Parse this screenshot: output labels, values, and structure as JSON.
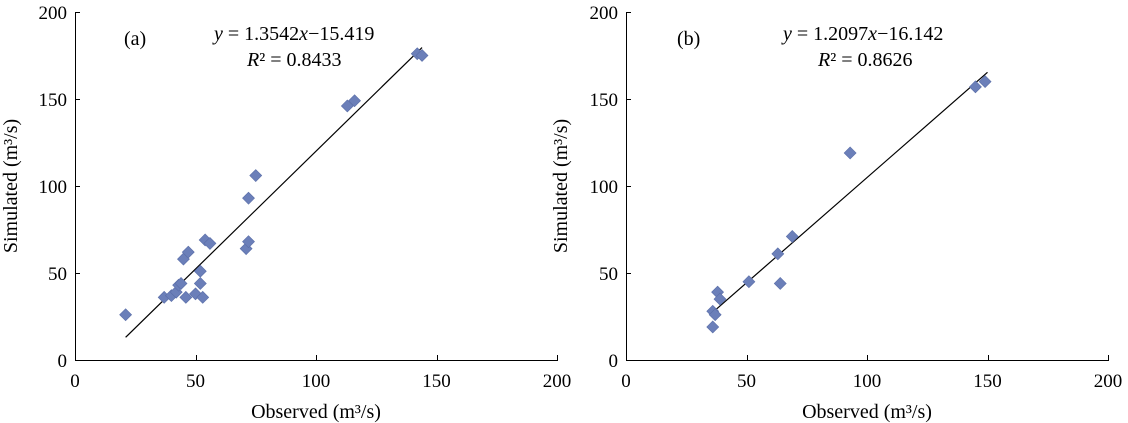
{
  "chart_data": [
    {
      "type": "scatter",
      "panel_label": "(a)",
      "xlabel": "Observed (m³/s)",
      "ylabel": "Simulated (m³/s)",
      "xlim": [
        0,
        200
      ],
      "ylim": [
        0,
        200
      ],
      "xticks": [
        0,
        50,
        100,
        150,
        200
      ],
      "yticks": [
        0,
        50,
        100,
        150,
        200
      ],
      "equation_y": "y",
      "equation_rest": " = 1.3542",
      "equation_x": "x",
      "equation_tail": "−15.419",
      "r2_R": "R",
      "r2_rest": "² = 0.8433",
      "fit": {
        "slope": 1.3542,
        "intercept": -15.419,
        "x_range": [
          21,
          144
        ]
      },
      "points": [
        [
          21,
          26
        ],
        [
          37,
          36
        ],
        [
          40,
          37
        ],
        [
          42,
          39
        ],
        [
          43,
          43
        ],
        [
          44,
          44
        ],
        [
          45,
          58
        ],
        [
          46,
          36
        ],
        [
          47,
          62
        ],
        [
          50,
          38
        ],
        [
          52,
          51
        ],
        [
          52,
          44
        ],
        [
          53,
          36
        ],
        [
          54,
          69
        ],
        [
          56,
          67
        ],
        [
          71,
          64
        ],
        [
          72,
          68
        ],
        [
          72,
          93
        ],
        [
          75,
          106
        ],
        [
          113,
          146
        ],
        [
          116,
          149
        ],
        [
          142,
          176
        ],
        [
          144,
          175
        ]
      ]
    },
    {
      "type": "scatter",
      "panel_label": "(b)",
      "xlabel": "Observed (m³/s)",
      "ylabel": "Simulated (m³/s)",
      "xlim": [
        0,
        200
      ],
      "ylim": [
        0,
        200
      ],
      "xticks": [
        0,
        50,
        100,
        150,
        200
      ],
      "yticks": [
        0,
        50,
        100,
        150,
        200
      ],
      "equation_y": "y",
      "equation_rest": " = 1.2097",
      "equation_x": "x",
      "equation_tail": "−16.142",
      "r2_R": "R",
      "r2_rest": "² = 0.8626",
      "fit": {
        "slope": 1.2097,
        "intercept": -16.142,
        "x_range": [
          37,
          150
        ]
      },
      "points": [
        [
          36,
          19
        ],
        [
          36,
          28
        ],
        [
          37,
          26
        ],
        [
          38,
          39
        ],
        [
          39,
          35
        ],
        [
          51,
          45
        ],
        [
          63,
          61
        ],
        [
          64,
          44
        ],
        [
          69,
          71
        ],
        [
          93,
          119
        ],
        [
          145,
          157
        ],
        [
          149,
          160
        ]
      ]
    }
  ]
}
